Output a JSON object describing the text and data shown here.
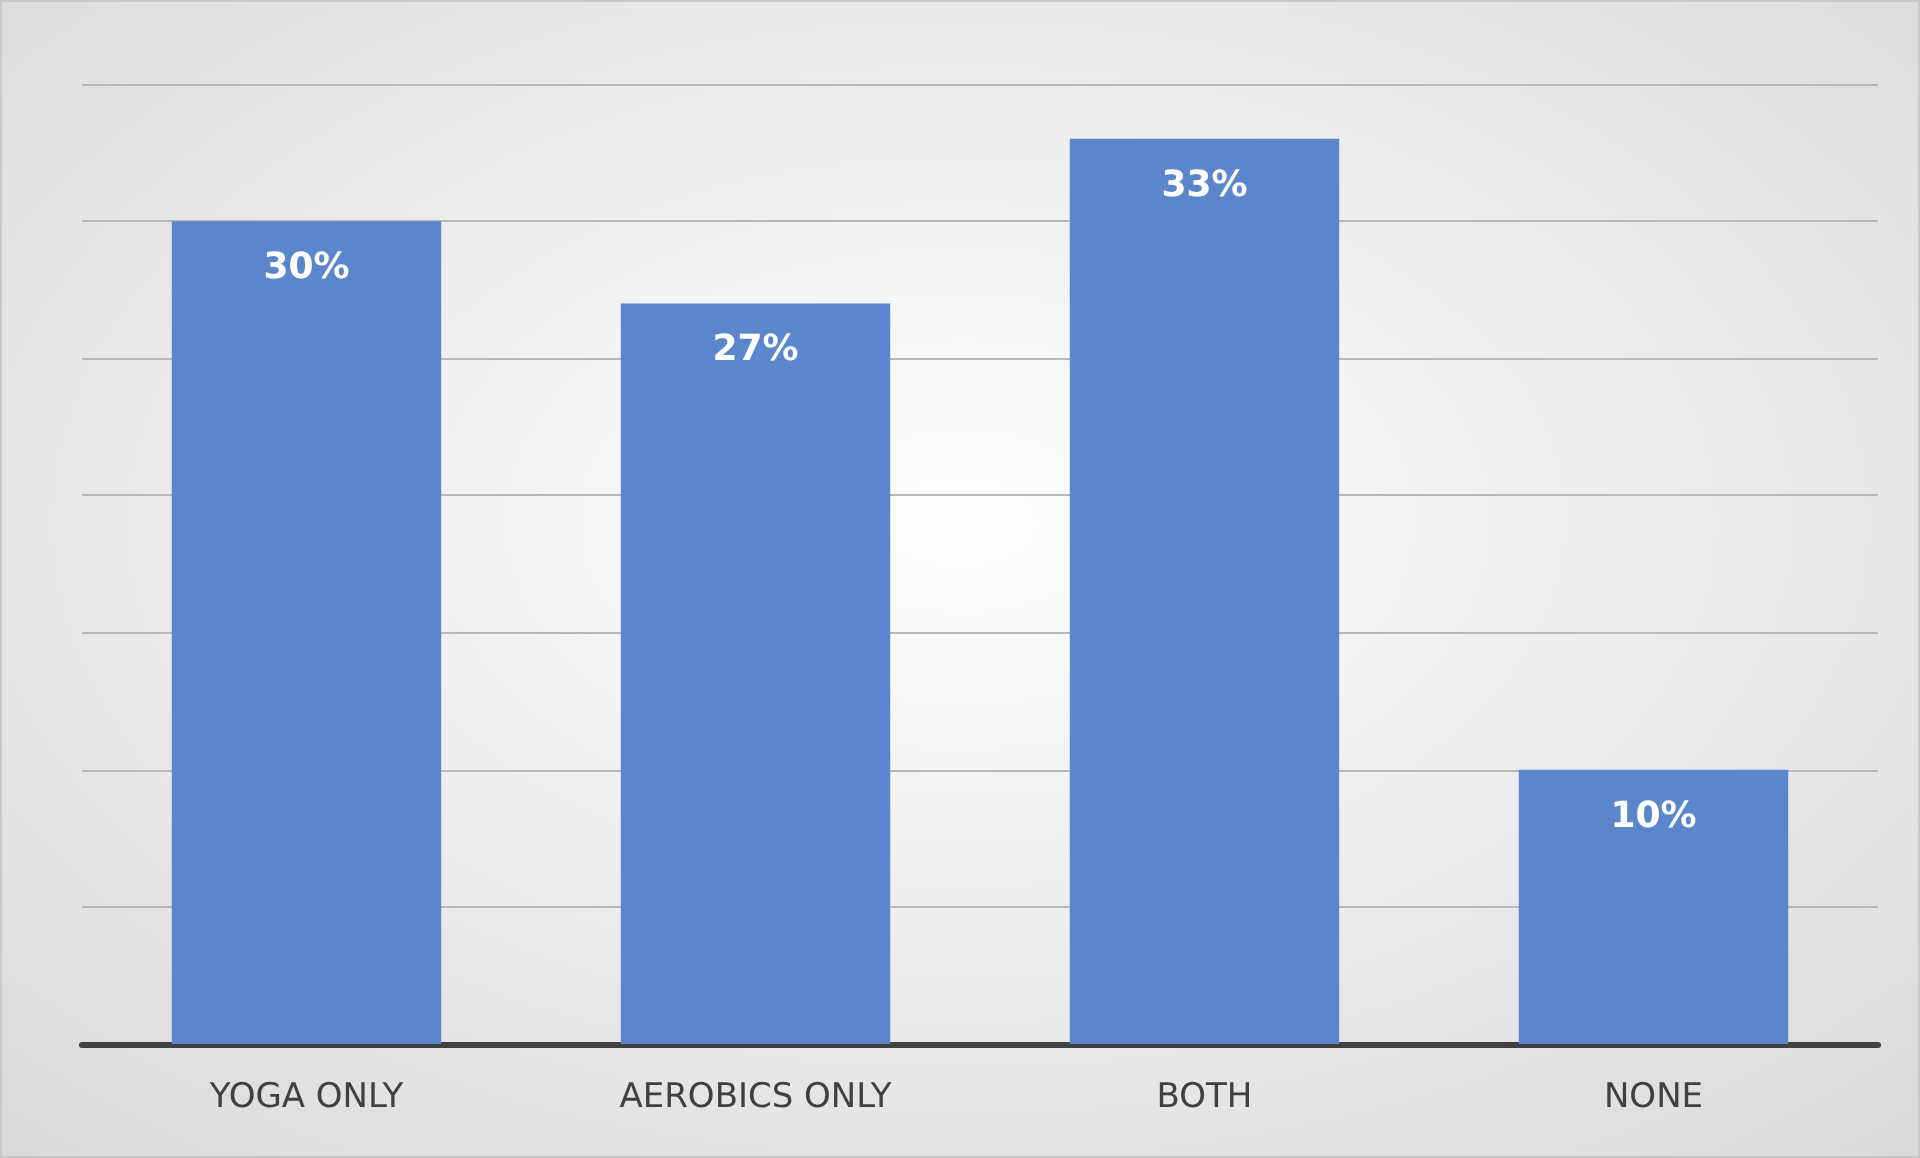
{
  "chart_data": {
    "type": "bar",
    "categories": [
      "YOGA ONLY",
      "AEROBICS ONLY",
      "BOTH",
      "NONE"
    ],
    "values": [
      30,
      27,
      33,
      10
    ],
    "color": "#5b86cc",
    "data_labels": true,
    "value_labels": [
      "30%",
      "27%",
      "33%",
      "10%"
    ],
    "ylim": [
      0,
      35
    ],
    "yticks": [
      {
        "value": 0,
        "label": null
      },
      {
        "value": 5,
        "label": null
      },
      {
        "value": 10,
        "label": null
      },
      {
        "value": 15,
        "label": null
      },
      {
        "value": 20,
        "label": null
      },
      {
        "value": 25,
        "label": null
      },
      {
        "value": 30,
        "label": null
      },
      {
        "value": 35,
        "label": null
      }
    ],
    "tick_labels": "x",
    "grid": "y"
  }
}
